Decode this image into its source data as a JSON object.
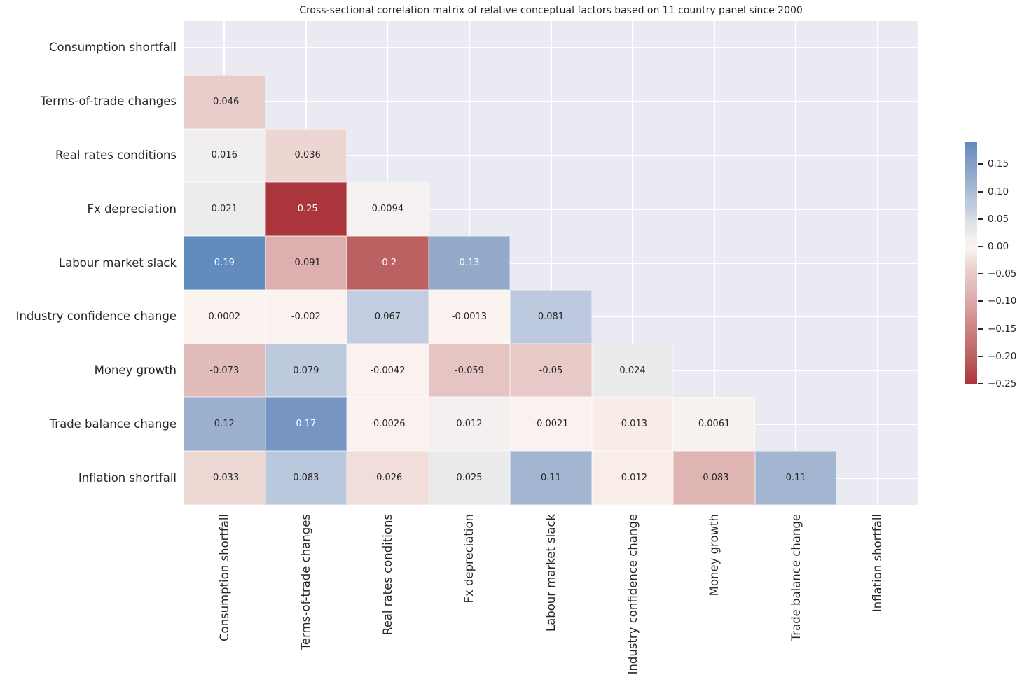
{
  "chart_data": {
    "type": "heatmap",
    "title": "Cross-sectional correlation matrix of relative conceptual factors based on 11 country panel since 2000",
    "categories": [
      "Consumption shortfall",
      "Terms-of-trade changes",
      "Real rates conditions",
      "Fx depreciation",
      "Labour market slack",
      "Industry confidence change",
      "Money growth",
      "Trade balance change",
      "Inflation shortfall"
    ],
    "matrix_lower_triangle": [
      [],
      [
        -0.046
      ],
      [
        0.016,
        -0.036
      ],
      [
        0.021,
        -0.25,
        0.0094
      ],
      [
        0.19,
        -0.091,
        -0.2,
        0.13
      ],
      [
        0.0002,
        -0.002,
        0.067,
        -0.0013,
        0.081
      ],
      [
        -0.073,
        0.079,
        -0.0042,
        -0.059,
        -0.05,
        0.024
      ],
      [
        0.12,
        0.17,
        -0.0026,
        0.012,
        -0.0021,
        -0.013,
        0.0061
      ],
      [
        -0.033,
        0.083,
        -0.026,
        0.025,
        0.11,
        -0.012,
        -0.083,
        0.11
      ]
    ],
    "mask": "upper-triangle-including-diagonal",
    "color_scale": {
      "vmin": -0.25,
      "vmax": 0.19,
      "center": 0,
      "halfrange": 0.25
    },
    "colormap_stops": [
      {
        "p": 0.0,
        "color": "#AA353C"
      },
      {
        "p": 0.1,
        "color": "#BC6162"
      },
      {
        "p": 0.2,
        "color": "#CB8281"
      },
      {
        "p": 0.32,
        "color": "#DDB1B0"
      },
      {
        "p": 0.4,
        "color": "#E7CAC8"
      },
      {
        "p": 0.45,
        "color": "#F1DEDA"
      },
      {
        "p": 0.48,
        "color": "#FAF0ED"
      },
      {
        "p": 0.5,
        "color": "#FBF3F0"
      },
      {
        "p": 0.52,
        "color": "#F5F1F0"
      },
      {
        "p": 0.55,
        "color": "#EAEAEC"
      },
      {
        "p": 0.6,
        "color": "#D9DEE7"
      },
      {
        "p": 0.63,
        "color": "#C3CEDF"
      },
      {
        "p": 0.66,
        "color": "#BDCADE"
      },
      {
        "p": 0.72,
        "color": "#A2B6D1"
      },
      {
        "p": 0.76,
        "color": "#93AACA"
      },
      {
        "p": 0.84,
        "color": "#7695C2"
      },
      {
        "p": 0.88,
        "color": "#628BBE"
      },
      {
        "p": 1.0,
        "color": "#2E66A9"
      }
    ],
    "colorbar_ticks": [
      {
        "value": 0.15,
        "label": "0.15"
      },
      {
        "value": 0.1,
        "label": "0.10"
      },
      {
        "value": 0.05,
        "label": "0.05"
      },
      {
        "value": 0.0,
        "label": "0.00"
      },
      {
        "value": -0.05,
        "label": "−0.05"
      },
      {
        "value": -0.1,
        "label": "−0.10"
      },
      {
        "value": -0.15,
        "label": "−0.15"
      },
      {
        "value": -0.2,
        "label": "−0.20"
      },
      {
        "value": -0.25,
        "label": "−0.25"
      }
    ],
    "mask_background_color": "#EAEAF2",
    "grid_color": "#FFFFFF",
    "text_color": "#262626",
    "annotation_light_color": "#FFFFFF",
    "legend_position": "right"
  }
}
